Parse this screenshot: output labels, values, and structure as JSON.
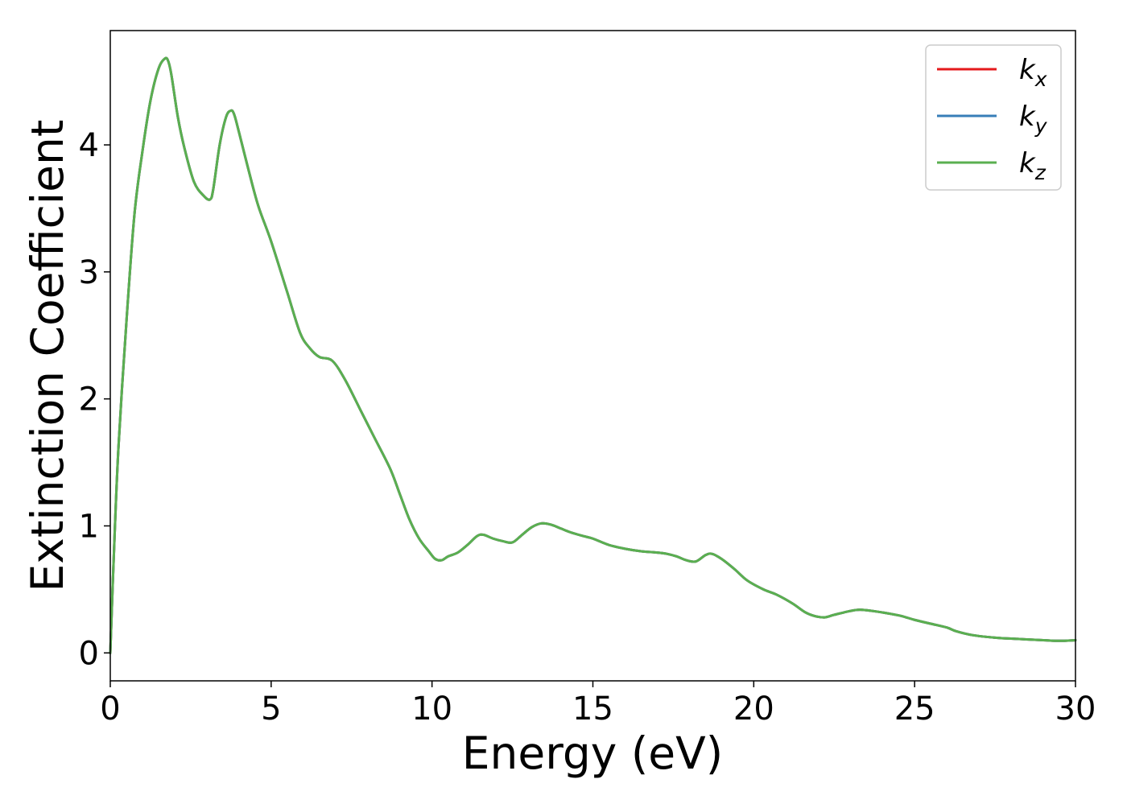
{
  "chart_data": {
    "type": "line",
    "title": "",
    "xlabel": "Energy (eV)",
    "ylabel": "Extinction Coefficient",
    "xlim": [
      0,
      30
    ],
    "ylim": [
      -0.22,
      4.9
    ],
    "grid": false,
    "legend_position": "top-right",
    "xticks": [
      "0",
      "5",
      "10",
      "15",
      "20",
      "25",
      "30"
    ],
    "yticks": [
      "0",
      "1",
      "2",
      "3",
      "4"
    ],
    "x": [
      0,
      0.1,
      0.25,
      0.5,
      0.75,
      1.0,
      1.25,
      1.5,
      1.7,
      1.8,
      1.9,
      2.1,
      2.3,
      2.6,
      2.9,
      3.1,
      3.2,
      3.4,
      3.6,
      3.75,
      3.85,
      4.0,
      4.3,
      4.6,
      5.0,
      5.5,
      5.9,
      6.2,
      6.5,
      6.9,
      7.3,
      7.8,
      8.2,
      8.7,
      9.0,
      9.3,
      9.6,
      9.9,
      10.1,
      10.3,
      10.5,
      10.8,
      11.1,
      11.4,
      11.6,
      11.9,
      12.2,
      12.5,
      12.8,
      13.1,
      13.4,
      13.7,
      14.0,
      14.3,
      14.7,
      15.0,
      15.5,
      16.0,
      16.5,
      17.0,
      17.3,
      17.6,
      17.9,
      18.2,
      18.5,
      18.7,
      19.0,
      19.4,
      19.8,
      20.3,
      20.7,
      21.2,
      21.6,
      21.9,
      22.2,
      22.5,
      23.0,
      23.3,
      23.7,
      24.2,
      24.6,
      25.0,
      25.5,
      26.0,
      26.3,
      26.8,
      27.5,
      28.2,
      29.0,
      29.5,
      30.0
    ],
    "series": [
      {
        "name": "k_x",
        "name_base": "k",
        "name_sub": "x",
        "color": "#e41a1c",
        "values": [
          0.0,
          0.7,
          1.6,
          2.6,
          3.45,
          3.95,
          4.35,
          4.6,
          4.68,
          4.66,
          4.55,
          4.22,
          3.98,
          3.71,
          3.6,
          3.57,
          3.65,
          4.0,
          4.22,
          4.27,
          4.24,
          4.1,
          3.8,
          3.52,
          3.24,
          2.84,
          2.52,
          2.4,
          2.33,
          2.3,
          2.15,
          1.9,
          1.7,
          1.45,
          1.25,
          1.05,
          0.9,
          0.8,
          0.74,
          0.73,
          0.76,
          0.79,
          0.85,
          0.92,
          0.93,
          0.9,
          0.88,
          0.87,
          0.93,
          0.99,
          1.02,
          1.01,
          0.98,
          0.95,
          0.92,
          0.9,
          0.85,
          0.82,
          0.8,
          0.79,
          0.78,
          0.76,
          0.73,
          0.72,
          0.77,
          0.78,
          0.74,
          0.66,
          0.57,
          0.5,
          0.46,
          0.39,
          0.32,
          0.29,
          0.28,
          0.3,
          0.33,
          0.34,
          0.33,
          0.31,
          0.29,
          0.26,
          0.23,
          0.2,
          0.17,
          0.14,
          0.12,
          0.11,
          0.1,
          0.095,
          0.1
        ]
      },
      {
        "name": "k_y",
        "name_base": "k",
        "name_sub": "y",
        "color": "#377eb8",
        "values": [
          0.0,
          0.7,
          1.6,
          2.6,
          3.45,
          3.95,
          4.35,
          4.6,
          4.68,
          4.66,
          4.55,
          4.22,
          3.98,
          3.71,
          3.6,
          3.57,
          3.65,
          4.0,
          4.22,
          4.27,
          4.24,
          4.1,
          3.8,
          3.52,
          3.24,
          2.84,
          2.52,
          2.4,
          2.33,
          2.3,
          2.15,
          1.9,
          1.7,
          1.45,
          1.25,
          1.05,
          0.9,
          0.8,
          0.74,
          0.73,
          0.76,
          0.79,
          0.85,
          0.92,
          0.93,
          0.9,
          0.88,
          0.87,
          0.93,
          0.99,
          1.02,
          1.01,
          0.98,
          0.95,
          0.92,
          0.9,
          0.85,
          0.82,
          0.8,
          0.79,
          0.78,
          0.76,
          0.73,
          0.72,
          0.77,
          0.78,
          0.74,
          0.66,
          0.57,
          0.5,
          0.46,
          0.39,
          0.32,
          0.29,
          0.28,
          0.3,
          0.33,
          0.34,
          0.33,
          0.31,
          0.29,
          0.26,
          0.23,
          0.2,
          0.17,
          0.14,
          0.12,
          0.11,
          0.1,
          0.095,
          0.1
        ]
      },
      {
        "name": "k_z",
        "name_base": "k",
        "name_sub": "z",
        "color": "#5aaf50",
        "values": [
          0.0,
          0.7,
          1.6,
          2.6,
          3.45,
          3.95,
          4.35,
          4.6,
          4.68,
          4.66,
          4.55,
          4.22,
          3.98,
          3.71,
          3.6,
          3.57,
          3.65,
          4.0,
          4.22,
          4.27,
          4.24,
          4.1,
          3.8,
          3.52,
          3.24,
          2.84,
          2.52,
          2.4,
          2.33,
          2.3,
          2.15,
          1.9,
          1.7,
          1.45,
          1.25,
          1.05,
          0.9,
          0.8,
          0.74,
          0.73,
          0.76,
          0.79,
          0.85,
          0.92,
          0.93,
          0.9,
          0.88,
          0.87,
          0.93,
          0.99,
          1.02,
          1.01,
          0.98,
          0.95,
          0.92,
          0.9,
          0.85,
          0.82,
          0.8,
          0.79,
          0.78,
          0.76,
          0.73,
          0.72,
          0.77,
          0.78,
          0.74,
          0.66,
          0.57,
          0.5,
          0.46,
          0.39,
          0.32,
          0.29,
          0.28,
          0.3,
          0.33,
          0.34,
          0.33,
          0.31,
          0.29,
          0.26,
          0.23,
          0.2,
          0.17,
          0.14,
          0.12,
          0.11,
          0.1,
          0.095,
          0.1
        ]
      }
    ]
  }
}
